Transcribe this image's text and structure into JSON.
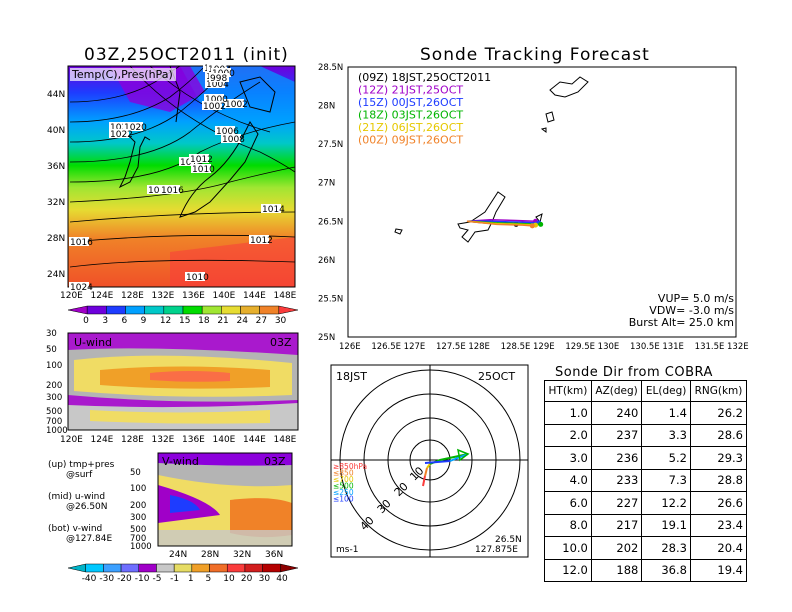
{
  "main_map": {
    "title": "03Z,25OCT2011 (init)",
    "overlay_label": "Temp(C),Pres(hPa)",
    "lon_ticks": [
      "120E",
      "124E",
      "128E",
      "132E",
      "136E",
      "140E",
      "144E",
      "148E"
    ],
    "lat_ticks": [
      "24N",
      "28N",
      "32N",
      "36N",
      "40N",
      "44N"
    ],
    "isobar_labels": [
      "1008",
      "1006",
      "1004",
      "1002",
      "1000",
      "998",
      "1002",
      "1000",
      "1002",
      "1006",
      "1008",
      "1026",
      "1020",
      "1022",
      "1014",
      "1012",
      "1010",
      "1018",
      "1016",
      "1014",
      "1012",
      "1010",
      "1016",
      "1024"
    ],
    "colorbar": [
      "0",
      "3",
      "6",
      "9",
      "12",
      "15",
      "18",
      "21",
      "24",
      "27",
      "30"
    ],
    "colors": [
      "#a000c8",
      "#6e00dc",
      "#1e3cff",
      "#00a0ff",
      "#00c8c8",
      "#00d28c",
      "#00dc00",
      "#a0e632",
      "#e6dc32",
      "#e6af2d",
      "#f08228",
      "#fa3c3c"
    ]
  },
  "u_panel": {
    "label": "U-wind",
    "time": "03Z",
    "y_ticks": [
      "30",
      "50",
      "100",
      "200",
      "300",
      "500",
      "700",
      "1000"
    ],
    "x_ticks": [
      "120E",
      "124E",
      "128E",
      "132E",
      "136E",
      "140E",
      "144E",
      "148E"
    ]
  },
  "v_panel": {
    "label": "V-wind",
    "time": "03Z",
    "y_ticks": [
      "50",
      "100",
      "200",
      "300",
      "500",
      "700",
      "1000"
    ],
    "x_ticks": [
      "24N",
      "28N",
      "32N",
      "36N"
    ]
  },
  "wind_colorbar": [
    "-40",
    "-30",
    "-20",
    "-10",
    "-5",
    "-1",
    "1",
    "5",
    "10",
    "20",
    "30",
    "40"
  ],
  "legend_notes": [
    {
      "a": "(up) tmp+pres",
      "b": "@surf"
    },
    {
      "a": "(mid) u-wind",
      "b": "@26.50N"
    },
    {
      "a": "(bot) v-wind",
      "b": "@127.84E"
    }
  ],
  "tracking": {
    "title": "Sonde Tracking Forecast",
    "x_ticks": [
      "126E",
      "126.5E",
      "127E",
      "127.5E",
      "128E",
      "128.5E",
      "129E",
      "129.5E",
      "130E",
      "130.5E",
      "131E",
      "131.5E",
      "132E"
    ],
    "y_ticks": [
      "25N",
      "25.5N",
      "26N",
      "26.5N",
      "27N",
      "27.5N",
      "28N",
      "28.5N"
    ],
    "legend": [
      {
        "t": "(09Z)  18JST,25OCT2011",
        "c": "#000000"
      },
      {
        "t": "(12Z)  21JST,25OCT",
        "c": "#a000c8"
      },
      {
        "t": "(15Z)  00JST,26OCT",
        "c": "#1e3cff"
      },
      {
        "t": "(18Z)  03JST,26OCT",
        "c": "#00b400"
      },
      {
        "t": "(21Z)  06JST,26OCT",
        "c": "#e6c800"
      },
      {
        "t": "(00Z)  09JST,26OCT",
        "c": "#f08228"
      }
    ],
    "params": [
      "VUP=  5.0  m/s",
      "VDW= -3.0  m/s",
      "Burst Alt=  25.0  km"
    ]
  },
  "polar": {
    "time": "18JST",
    "date": "25OCT",
    "ring_labels": [
      "10",
      "20",
      "30",
      "40"
    ],
    "unit": "ms-1",
    "loc1": "26.5N",
    "loc2": "127.875E",
    "levels": [
      {
        "t": "≥850hPa",
        "c": "#fa3c3c"
      },
      {
        "t": "≤850",
        "c": "#f08228"
      },
      {
        "t": "≤700",
        "c": "#e6c800"
      },
      {
        "t": "≤500",
        "c": "#00b400"
      },
      {
        "t": "≤250",
        "c": "#00a0ff"
      },
      {
        "t": "≤100",
        "c": "#1e3cff"
      }
    ]
  },
  "sonde_table": {
    "title": "Sonde Dir from COBRA",
    "headers": [
      "HT(km)",
      "AZ(deg)",
      "EL(deg)",
      "RNG(km)"
    ],
    "rows": [
      [
        "1.0",
        "240",
        "1.4",
        "26.2"
      ],
      [
        "2.0",
        "237",
        "3.3",
        "28.6"
      ],
      [
        "3.0",
        "236",
        "5.2",
        "29.3"
      ],
      [
        "4.0",
        "233",
        "7.3",
        "28.8"
      ],
      [
        "6.0",
        "227",
        "12.2",
        "26.6"
      ],
      [
        "8.0",
        "217",
        "19.1",
        "23.4"
      ],
      [
        "10.0",
        "202",
        "28.3",
        "20.4"
      ],
      [
        "12.0",
        "188",
        "36.8",
        "19.4"
      ]
    ]
  },
  "chart_data": [
    {
      "type": "heatmap",
      "title": "03Z,25OCT2011 (init)",
      "xlabel": "",
      "ylabel": "",
      "xlim": [
        "120E",
        "150E"
      ],
      "ylim": [
        "22N",
        "47N"
      ],
      "colorbar": [
        0,
        3,
        6,
        9,
        12,
        15,
        18,
        21,
        24,
        27,
        30
      ]
    },
    {
      "type": "heatmap",
      "title": "U-wind",
      "xlim": [
        "120E",
        "150E"
      ],
      "ylim": [
        1000,
        30
      ]
    },
    {
      "type": "heatmap",
      "title": "V-wind",
      "xlim": [
        "21N",
        "39N"
      ],
      "ylim": [
        1000,
        30
      ]
    },
    {
      "type": "line",
      "title": "Sonde Tracking Forecast",
      "xlim": [
        126,
        132
      ],
      "ylim": [
        25,
        28.5
      ],
      "series": [
        {
          "name": "(09Z)  18JST,25OCT2011",
          "x": [
            127.84,
            128.1,
            128.4,
            128.6
          ],
          "y": [
            26.5,
            26.48,
            26.47,
            26.46
          ]
        },
        {
          "name": "(12Z)  21JST,25OCT",
          "x": [
            127.84,
            128.2,
            128.6,
            128.9
          ],
          "y": [
            26.5,
            26.52,
            26.51,
            26.5
          ]
        },
        {
          "name": "(15Z)  00JST,26OCT",
          "x": [
            127.84,
            128.2,
            128.6,
            128.95
          ],
          "y": [
            26.5,
            26.5,
            26.49,
            26.48
          ]
        },
        {
          "name": "(18Z)  03JST,26OCT",
          "x": [
            127.84,
            128.3,
            128.7,
            128.98
          ],
          "y": [
            26.5,
            26.48,
            26.47,
            26.46
          ]
        },
        {
          "name": "(21Z)  06JST,26OCT",
          "x": [
            127.84,
            128.3,
            128.7,
            128.9
          ],
          "y": [
            26.5,
            26.47,
            26.46,
            26.45
          ]
        },
        {
          "name": "(00Z)  09JST,26OCT",
          "x": [
            127.84,
            128.3,
            128.7,
            128.85
          ],
          "y": [
            26.5,
            26.46,
            26.45,
            26.44
          ]
        }
      ]
    },
    {
      "type": "table",
      "title": "Sonde Dir from COBRA",
      "columns": [
        "HT(km)",
        "AZ(deg)",
        "EL(deg)",
        "RNG(km)"
      ]
    }
  ]
}
